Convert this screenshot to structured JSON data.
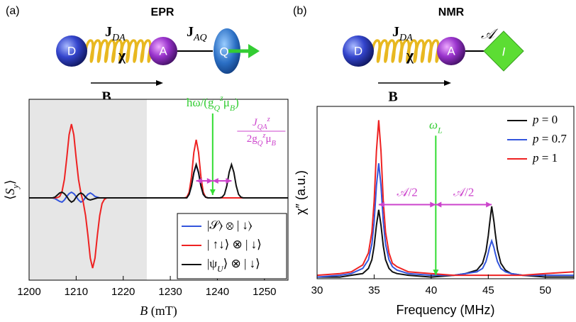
{
  "diagrams": [
    {
      "label": "(a)",
      "title": "EPR",
      "nodes": [
        "D",
        "A",
        "Q"
      ],
      "couplings": [
        {
          "symbol": "J",
          "subscript": "DA"
        },
        {
          "symbol": "J",
          "subscript": "AQ"
        }
      ],
      "chi": "χ",
      "field": "B"
    },
    {
      "label": "(b)",
      "title": "NMR",
      "nodes": [
        "D",
        "A",
        "I"
      ],
      "couplings": [
        {
          "symbol": "J",
          "subscript": "DA"
        },
        {
          "symbol": "𝒜"
        }
      ],
      "chi": "χ",
      "field": "B"
    }
  ],
  "chart_data": [
    {
      "type": "line",
      "x_label": [
        {
          "text": "B",
          "italic": true
        },
        {
          "text": " (mT)"
        }
      ],
      "y_label": [
        {
          "text": "⟨"
        },
        {
          "text": "S",
          "italic": true
        },
        {
          "text": "y",
          "shift": "sub",
          "italic": true
        },
        {
          "text": "⟩"
        }
      ],
      "xlim": [
        1200,
        1255
      ],
      "xticks": [
        1200,
        1210,
        1220,
        1230,
        1240,
        1250
      ],
      "ylim": [
        -1.16,
        1.39
      ],
      "shaded_xrange": [
        1200,
        1225
      ],
      "shade_color": "#e6e6e6",
      "legend": "lower right",
      "x": [
        1200,
        1204,
        1205,
        1205.5,
        1206,
        1206.5,
        1207,
        1207.5,
        1208,
        1208.5,
        1209,
        1209.5,
        1210,
        1210.5,
        1211,
        1211.5,
        1212,
        1212.5,
        1213,
        1213.5,
        1214,
        1214.5,
        1215,
        1215.5,
        1216,
        1216.5,
        1220,
        1225,
        1230,
        1233,
        1233.5,
        1234,
        1234.5,
        1235,
        1235.5,
        1236,
        1236.5,
        1237,
        1237.5,
        1238,
        1238.5,
        1239,
        1239.5,
        1240,
        1240.5,
        1241,
        1241.5,
        1242,
        1242.5,
        1243,
        1243.5,
        1244,
        1244.5,
        1245,
        1245.5,
        1246,
        1250,
        1255
      ],
      "series": [
        {
          "name": [
            {
              "text": "|𝒮⟩ ⊗ | ↓⟩"
            }
          ],
          "color": "#3355dd",
          "values": [
            0,
            0,
            0,
            -0.01,
            -0.03,
            -0.05,
            -0.06,
            -0.03,
            0.02,
            0.06,
            0.08,
            0.06,
            0.02,
            -0.03,
            -0.06,
            -0.04,
            0.01,
            0.05,
            0.07,
            0.05,
            0.02,
            0.01,
            0,
            0,
            0,
            0,
            0,
            0,
            0,
            0,
            0,
            0.05,
            0.17,
            0.35,
            0.46,
            0.35,
            0.17,
            0.05,
            0.01,
            0,
            0,
            0,
            0,
            0,
            0,
            0,
            0,
            0,
            0,
            0,
            0,
            0,
            0,
            0,
            0,
            0,
            0,
            0
          ]
        },
        {
          "name": [
            {
              "text": "| ↑↓⟩ ⊗ | ↓⟩"
            }
          ],
          "color": "#ee2222",
          "values": [
            0,
            0,
            0,
            0,
            0.004,
            0.02,
            0.09,
            0.26,
            0.56,
            0.89,
            1.04,
            0.89,
            0.56,
            0.26,
            0.07,
            -0.06,
            -0.25,
            -0.53,
            -0.85,
            -0.99,
            -0.85,
            -0.53,
            -0.25,
            -0.08,
            -0.02,
            0,
            0,
            0,
            0,
            0,
            0.01,
            0.08,
            0.3,
            0.64,
            0.82,
            0.64,
            0.3,
            0.08,
            0.01,
            0,
            0,
            0,
            0,
            0,
            0,
            0,
            0,
            0,
            0,
            0,
            0,
            0,
            0,
            0,
            0,
            0,
            0,
            0
          ]
        },
        {
          "name": [
            {
              "text": "|ψ"
            },
            {
              "text": "U",
              "shift": "sub",
              "italic": true
            },
            {
              "text": "⟩ ⊗ | ↓⟩"
            }
          ],
          "color": "#111111",
          "values": [
            0,
            0,
            0,
            0.01,
            0.04,
            0.07,
            0.08,
            0.06,
            0.02,
            -0.03,
            -0.06,
            -0.04,
            0.01,
            0.05,
            0.07,
            0.05,
            0.01,
            -0.02,
            -0.03,
            -0.02,
            -0.01,
            0,
            0,
            0,
            0,
            0,
            0,
            0,
            0,
            0,
            0,
            0.05,
            0.17,
            0.36,
            0.47,
            0.36,
            0.17,
            0.05,
            0.01,
            0,
            0,
            0,
            0,
            0,
            0,
            0.01,
            0.05,
            0.17,
            0.36,
            0.47,
            0.36,
            0.17,
            0.05,
            0.01,
            0,
            0,
            0,
            0
          ]
        }
      ],
      "arrows": [
        {
          "x": [
            1239,
            1239
          ],
          "y": [
            1.19,
            0.04
          ],
          "color": "#33dd33"
        },
        {
          "x": [
            1235.5,
            1239
          ],
          "y": [
            0.24,
            0.24
          ],
          "color": "#cc44cc",
          "double": true
        },
        {
          "x": [
            1239,
            1243
          ],
          "y": [
            0.24,
            0.24
          ],
          "color": "#cc44cc",
          "double": true
        }
      ],
      "annotations": [
        {
          "text": [
            {
              "text": "ħω/(g"
            },
            {
              "text": "Q",
              "shift": "sub",
              "italic": true
            },
            {
              "text": "z",
              "shift": "super",
              "italic": true
            },
            {
              "text": "μ"
            },
            {
              "text": "B",
              "shift": "sub",
              "italic": true
            },
            {
              "text": ")"
            }
          ],
          "color": "#33cc33"
        },
        {
          "numerator": [
            {
              "text": "J",
              "italic": true
            },
            {
              "text": "QA",
              "shift": "sub",
              "italic": true
            },
            {
              "text": "z",
              "shift": "super",
              "italic": true
            }
          ],
          "denominator": [
            {
              "text": "2g"
            },
            {
              "text": "Q",
              "shift": "sub",
              "italic": true
            },
            {
              "text": "z",
              "shift": "super",
              "italic": true
            },
            {
              "text": "μ"
            },
            {
              "text": "B",
              "shift": "sub",
              "italic": true
            }
          ],
          "color": "#cc44cc"
        }
      ]
    },
    {
      "type": "line",
      "x_label": "Frequency (MHz)",
      "y_label": "χ″ (a.u.)",
      "xlim": [
        30,
        52.5
      ],
      "xticks": [
        30,
        35,
        40,
        45,
        50
      ],
      "ylim": [
        0,
        1
      ],
      "legend": "upper right",
      "x": [
        30,
        32,
        33,
        34,
        34.5,
        34.8,
        35,
        35.2,
        35.4,
        35.6,
        35.8,
        36,
        36.3,
        36.6,
        37,
        38,
        40,
        42,
        43,
        44,
        44.5,
        44.8,
        45,
        45.1,
        45.3,
        45.5,
        45.6,
        45.8,
        46.1,
        46.5,
        47,
        48,
        50,
        52.5
      ],
      "series": [
        {
          "name": [
            {
              "text": "p",
              "italic": true
            },
            {
              "text": " = 0"
            }
          ],
          "color": "#111111",
          "values": [
            0.01,
            0.01,
            0.02,
            0.03,
            0.06,
            0.11,
            0.19,
            0.31,
            0.4,
            0.31,
            0.19,
            0.11,
            0.06,
            0.04,
            0.03,
            0.02,
            0.01,
            0.02,
            0.03,
            0.05,
            0.09,
            0.16,
            0.25,
            0.31,
            0.42,
            0.33,
            0.27,
            0.17,
            0.09,
            0.05,
            0.03,
            0.02,
            0.01,
            0.01
          ]
        },
        {
          "name": [
            {
              "text": "p",
              "italic": true
            },
            {
              "text": " = 0.7"
            }
          ],
          "color": "#3355dd",
          "values": [
            0.01,
            0.02,
            0.03,
            0.06,
            0.11,
            0.2,
            0.33,
            0.54,
            0.67,
            0.54,
            0.33,
            0.2,
            0.11,
            0.07,
            0.05,
            0.03,
            0.02,
            0.02,
            0.03,
            0.04,
            0.06,
            0.1,
            0.15,
            0.18,
            0.22,
            0.18,
            0.15,
            0.1,
            0.06,
            0.04,
            0.03,
            0.02,
            0.02,
            0.02
          ]
        },
        {
          "name": [
            {
              "text": "p",
              "italic": true
            },
            {
              "text": " = 1"
            }
          ],
          "color": "#ee2222",
          "values": [
            0.02,
            0.03,
            0.04,
            0.08,
            0.15,
            0.27,
            0.45,
            0.74,
            0.92,
            0.74,
            0.45,
            0.27,
            0.15,
            0.09,
            0.07,
            0.04,
            0.03,
            0.02,
            0.02,
            0.02,
            0.02,
            0.02,
            0.02,
            0.02,
            0.02,
            0.02,
            0.02,
            0.02,
            0.02,
            0.02,
            0.02,
            0.02,
            0.03,
            0.04
          ]
        }
      ],
      "arrows": [
        {
          "x": [
            40.4,
            40.4
          ],
          "y": [
            0.83,
            0.02
          ],
          "color": "#33dd33"
        },
        {
          "x": [
            35.4,
            40.4
          ],
          "y": [
            0.43,
            0.43
          ],
          "color": "#cc44cc",
          "double": true
        },
        {
          "x": [
            40.4,
            45.3
          ],
          "y": [
            0.43,
            0.43
          ],
          "color": "#cc44cc",
          "double": true
        }
      ],
      "annotations": [
        {
          "text": [
            {
              "text": "ω",
              "italic": true
            },
            {
              "text": "L",
              "shift": "sub",
              "italic": true
            }
          ],
          "color": "#33cc33"
        },
        {
          "text": [
            {
              "text": "𝒜/2"
            }
          ],
          "color": "#cc44cc"
        },
        {
          "text": [
            {
              "text": "𝒜/2"
            }
          ],
          "color": "#cc44cc"
        }
      ]
    }
  ]
}
